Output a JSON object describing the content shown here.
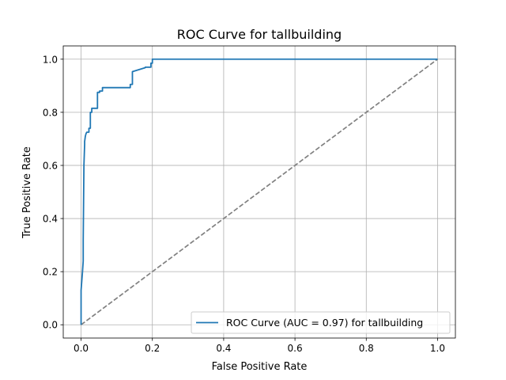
{
  "chart_data": {
    "type": "line",
    "title": "ROC Curve for tallbuilding",
    "xlabel": "False Positive Rate",
    "ylabel": "True Positive Rate",
    "xlim": [
      -0.05,
      1.05
    ],
    "ylim": [
      -0.05,
      1.05
    ],
    "xticks": [
      0.0,
      0.2,
      0.4,
      0.6,
      0.8,
      1.0
    ],
    "yticks": [
      0.0,
      0.2,
      0.4,
      0.6,
      0.8,
      1.0
    ],
    "xtick_labels": [
      "0.0",
      "0.2",
      "0.4",
      "0.6",
      "0.8",
      "1.0"
    ],
    "ytick_labels": [
      "0.0",
      "0.2",
      "0.4",
      "0.6",
      "0.8",
      "1.0"
    ],
    "grid": true,
    "legend_position": "lower-right",
    "series": [
      {
        "name": "ROC Curve (AUC = 0.97) for tallbuilding",
        "color": "#1f77b4",
        "style": "solid",
        "x": [
          0.0,
          0.0,
          0.004,
          0.006,
          0.006,
          0.008,
          0.01,
          0.01,
          0.012,
          0.014,
          0.016,
          0.018,
          0.022,
          0.022,
          0.026,
          0.026,
          0.03,
          0.03,
          0.046,
          0.046,
          0.052,
          0.052,
          0.06,
          0.06,
          0.138,
          0.138,
          0.144,
          0.144,
          0.18,
          0.18,
          0.196,
          0.196,
          0.2,
          0.2,
          1.0
        ],
        "y": [
          0.0,
          0.13,
          0.2,
          0.24,
          0.32,
          0.6,
          0.68,
          0.69,
          0.71,
          0.72,
          0.725,
          0.725,
          0.725,
          0.74,
          0.74,
          0.8,
          0.8,
          0.815,
          0.815,
          0.875,
          0.875,
          0.88,
          0.88,
          0.893,
          0.893,
          0.905,
          0.905,
          0.953,
          0.968,
          0.97,
          0.97,
          0.985,
          0.985,
          1.0,
          1.0
        ]
      },
      {
        "name": "",
        "color": "#808080",
        "style": "dashed",
        "x": [
          0.0,
          1.0
        ],
        "y": [
          0.0,
          1.0
        ]
      }
    ]
  }
}
